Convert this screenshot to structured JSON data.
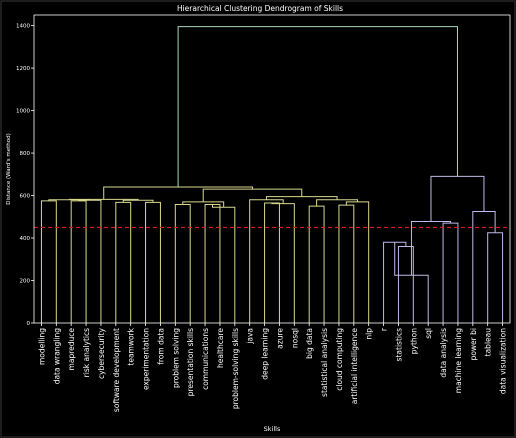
{
  "chart_data": {
    "type": "dendrogram",
    "title": "Hierarchical Clustering Dendrogram of Skills",
    "xlabel": "Skills",
    "ylabel": "Distance (Ward's method)",
    "ylim": [
      0,
      1450
    ],
    "yticks": [
      0,
      200,
      400,
      600,
      800,
      1000,
      1200,
      1400
    ],
    "threshold": 450,
    "threshold_color": "#e0141e",
    "grid": false,
    "leaves": [
      "modelling",
      "data wrangling",
      "mapreduce",
      "risk analytics",
      "cybersecurity",
      "software development",
      "teamwork",
      "experimentation",
      "from data",
      "problem solving",
      "presentation skills",
      "communications",
      "healthcare",
      "problem-solving skills",
      "java",
      "deep learning",
      "azure",
      "nosql",
      "big data",
      "statistical analysis",
      "cloud computing",
      "artificial intelligence",
      "nlp",
      "r",
      "statistics",
      "python",
      "sql",
      "data analysis",
      "machine learning",
      "power bi",
      "tableau",
      "data visualization"
    ],
    "merges": [
      {
        "id": "A1",
        "left": "L0",
        "right": "L1",
        "height": 575,
        "color": "#d8d890"
      },
      {
        "id": "A2",
        "left": "L2",
        "right": "L3",
        "height": 575,
        "color": "#d8d890"
      },
      {
        "id": "A3",
        "left": "A2",
        "right": "L4",
        "height": 578,
        "color": "#d8d890"
      },
      {
        "id": "A4",
        "left": "A1",
        "right": "A3",
        "height": 580,
        "color": "#d8d890"
      },
      {
        "id": "A5",
        "left": "L5",
        "right": "L6",
        "height": 568,
        "color": "#d8d890"
      },
      {
        "id": "A6",
        "left": "L7",
        "right": "L8",
        "height": 568,
        "color": "#d8d890"
      },
      {
        "id": "A7",
        "left": "A5",
        "right": "A6",
        "height": 578,
        "color": "#d8d890"
      },
      {
        "id": "A8",
        "left": "A4",
        "right": "A7",
        "height": 582,
        "color": "#d8d890"
      },
      {
        "id": "A9",
        "left": "L9",
        "right": "L10",
        "height": 558,
        "color": "#d8d890"
      },
      {
        "id": "A10",
        "left": "L11",
        "right": "L12",
        "height": 558,
        "color": "#d8d890"
      },
      {
        "id": "A11",
        "left": "A10",
        "right": "L13",
        "height": 545,
        "color": "#d8d890"
      },
      {
        "id": "A12",
        "left": "A9",
        "right": "A11",
        "height": 570,
        "color": "#d8d890"
      },
      {
        "id": "A13",
        "left": "L15",
        "right": "L16",
        "height": 565,
        "color": "#d8d890"
      },
      {
        "id": "A14",
        "left": "A13",
        "right": "L17",
        "height": 562,
        "color": "#d8d890"
      },
      {
        "id": "A15",
        "left": "L14",
        "right": "A14",
        "height": 580,
        "color": "#d8d890"
      },
      {
        "id": "A16",
        "left": "L18",
        "right": "L19",
        "height": 550,
        "color": "#d8d890"
      },
      {
        "id": "A17",
        "left": "L20",
        "right": "L21",
        "height": 555,
        "color": "#d8d890"
      },
      {
        "id": "A18",
        "left": "A17",
        "right": "L22",
        "height": 570,
        "color": "#d8d890"
      },
      {
        "id": "A19",
        "left": "A16",
        "right": "A18",
        "height": 580,
        "color": "#d8d890"
      },
      {
        "id": "A20",
        "left": "A15",
        "right": "A19",
        "height": 595,
        "color": "#d8d890"
      },
      {
        "id": "A21",
        "left": "A12",
        "right": "A20",
        "height": 630,
        "color": "#d8d890"
      },
      {
        "id": "A22",
        "left": "A8",
        "right": "A21",
        "height": 640,
        "color": "#d8d890"
      },
      {
        "id": "B1",
        "left": "L24",
        "right": "L25",
        "height": 360,
        "color": "#c0b8e8"
      },
      {
        "id": "B2",
        "left": "L23",
        "right": "B1",
        "height": 380,
        "color": "#c0b8e8"
      },
      {
        "id": "B3",
        "left": "B2",
        "right": "L26",
        "height": 225,
        "color": "#c0b8e8"
      },
      {
        "id": "B4",
        "left": "L27",
        "right": "L28",
        "height": 470,
        "color": "#c0b8e8"
      },
      {
        "id": "B5",
        "left": "B3",
        "right": "B4",
        "height": 478,
        "color": "#c0b8e8"
      },
      {
        "id": "B6",
        "left": "L30",
        "right": "L31",
        "height": 425,
        "color": "#c0b8e8"
      },
      {
        "id": "B7",
        "left": "L29",
        "right": "B6",
        "height": 525,
        "color": "#c0b8e8"
      },
      {
        "id": "B8",
        "left": "B5",
        "right": "B7",
        "height": 690,
        "color": "#c0b8e8"
      },
      {
        "id": "R",
        "left": "A22",
        "right": "B8",
        "height": 1395,
        "color": "#a8d8b8"
      }
    ]
  }
}
